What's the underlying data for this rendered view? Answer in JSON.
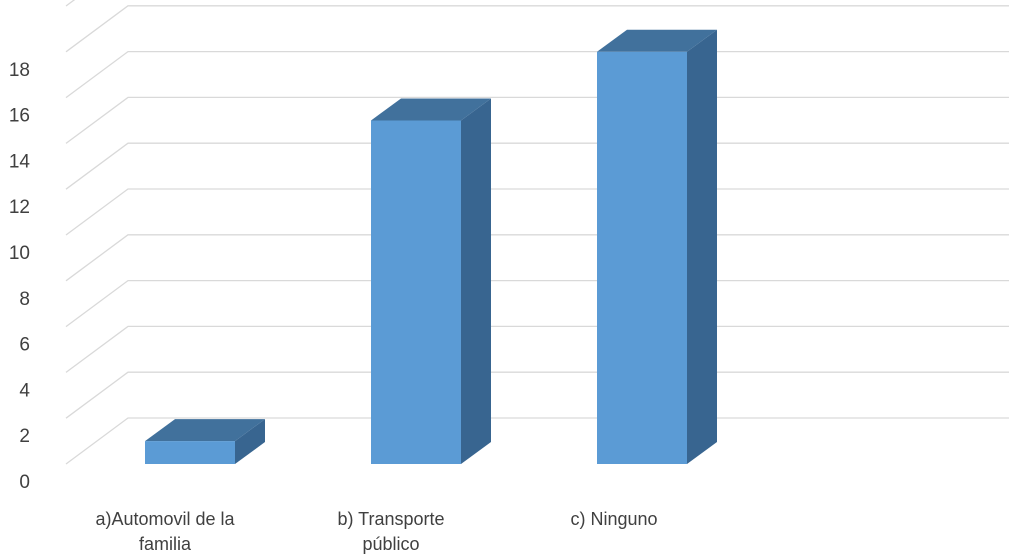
{
  "chart_data": {
    "type": "bar",
    "title": "",
    "xlabel": "",
    "ylabel": "",
    "ylim": [
      0,
      20
    ],
    "y_ticks": [
      0,
      2,
      4,
      6,
      8,
      10,
      12,
      14,
      16,
      18
    ],
    "grid": true,
    "three_d": true,
    "categories": [
      [
        "a)Automovil de la",
        "familia"
      ],
      [
        "b) Transporte",
        "público"
      ],
      [
        "c) Ninguno"
      ]
    ],
    "values": [
      1,
      15,
      18
    ],
    "colors": {
      "bar_front": "#5b9bd5",
      "bar_top": "#41719c",
      "bar_side": "#386590",
      "grid": "#d9d9d9",
      "text": "#404040"
    }
  }
}
